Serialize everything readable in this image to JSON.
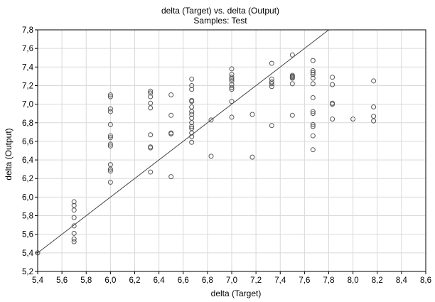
{
  "chart_data": {
    "type": "scatter",
    "title": "delta (Target) vs. delta (Output)",
    "subtitle": "Samples: Test",
    "xlabel": "delta (Target)",
    "ylabel": "delta (Output)",
    "xlim": [
      5.4,
      8.6
    ],
    "ylim": [
      5.2,
      7.8
    ],
    "xticks": [
      "5,4",
      "5,6",
      "5,8",
      "6,0",
      "6,2",
      "6,4",
      "6,6",
      "6,8",
      "7,0",
      "7,2",
      "7,4",
      "7,6",
      "7,8",
      "8,0",
      "8,2",
      "8,4",
      "8,6"
    ],
    "yticks": [
      "5,2",
      "5,4",
      "5,6",
      "5,8",
      "6,0",
      "6,2",
      "6,4",
      "6,6",
      "6,8",
      "7,0",
      "7,2",
      "7,4",
      "7,6",
      "7,8"
    ],
    "grid": true,
    "reference_line": {
      "type": "identity",
      "from": [
        5.4,
        5.4
      ],
      "to": [
        7.8,
        7.8
      ]
    },
    "points": [
      [
        5.4,
        5.4
      ],
      [
        5.7,
        5.95
      ],
      [
        5.7,
        5.91
      ],
      [
        5.7,
        5.86
      ],
      [
        5.7,
        5.78
      ],
      [
        5.7,
        5.69
      ],
      [
        5.7,
        5.61
      ],
      [
        5.7,
        5.55
      ],
      [
        5.7,
        5.52
      ],
      [
        6.0,
        7.1
      ],
      [
        6.0,
        7.08
      ],
      [
        6.0,
        6.95
      ],
      [
        6.0,
        6.92
      ],
      [
        6.0,
        6.78
      ],
      [
        6.0,
        6.66
      ],
      [
        6.0,
        6.64
      ],
      [
        6.0,
        6.57
      ],
      [
        6.0,
        6.55
      ],
      [
        6.0,
        6.35
      ],
      [
        6.0,
        6.3
      ],
      [
        6.0,
        6.28
      ],
      [
        6.0,
        6.16
      ],
      [
        6.33,
        7.14
      ],
      [
        6.33,
        7.12
      ],
      [
        6.33,
        7.08
      ],
      [
        6.33,
        7.01
      ],
      [
        6.33,
        6.96
      ],
      [
        6.33,
        6.67
      ],
      [
        6.33,
        6.54
      ],
      [
        6.33,
        6.53
      ],
      [
        6.33,
        6.27
      ],
      [
        6.5,
        7.1
      ],
      [
        6.5,
        6.88
      ],
      [
        6.5,
        6.69
      ],
      [
        6.5,
        6.68
      ],
      [
        6.5,
        6.22
      ],
      [
        6.67,
        7.27
      ],
      [
        6.67,
        7.2
      ],
      [
        6.67,
        7.16
      ],
      [
        6.67,
        7.04
      ],
      [
        6.67,
        7.03
      ],
      [
        6.67,
        6.97
      ],
      [
        6.67,
        6.92
      ],
      [
        6.67,
        6.89
      ],
      [
        6.67,
        6.85
      ],
      [
        6.67,
        6.8
      ],
      [
        6.67,
        6.76
      ],
      [
        6.67,
        6.74
      ],
      [
        6.67,
        6.69
      ],
      [
        6.67,
        6.65
      ],
      [
        6.67,
        6.59
      ],
      [
        6.83,
        6.83
      ],
      [
        6.83,
        6.44
      ],
      [
        7.0,
        7.38
      ],
      [
        7.0,
        7.32
      ],
      [
        7.0,
        7.29
      ],
      [
        7.0,
        7.27
      ],
      [
        7.0,
        7.25
      ],
      [
        7.0,
        7.21
      ],
      [
        7.0,
        7.18
      ],
      [
        7.0,
        7.16
      ],
      [
        7.0,
        7.03
      ],
      [
        7.0,
        6.86
      ],
      [
        7.17,
        6.89
      ],
      [
        7.17,
        6.43
      ],
      [
        7.33,
        7.44
      ],
      [
        7.33,
        7.27
      ],
      [
        7.33,
        7.24
      ],
      [
        7.33,
        7.22
      ],
      [
        7.33,
        7.19
      ],
      [
        7.33,
        6.77
      ],
      [
        7.5,
        7.53
      ],
      [
        7.5,
        7.31
      ],
      [
        7.5,
        7.3
      ],
      [
        7.5,
        7.29
      ],
      [
        7.5,
        7.28
      ],
      [
        7.5,
        7.22
      ],
      [
        7.5,
        6.88
      ],
      [
        7.67,
        7.47
      ],
      [
        7.67,
        7.36
      ],
      [
        7.67,
        7.34
      ],
      [
        7.67,
        7.32
      ],
      [
        7.67,
        7.28
      ],
      [
        7.67,
        7.22
      ],
      [
        7.67,
        7.07
      ],
      [
        7.67,
        6.92
      ],
      [
        7.67,
        6.9
      ],
      [
        7.67,
        6.78
      ],
      [
        7.67,
        6.76
      ],
      [
        7.67,
        6.66
      ],
      [
        7.67,
        6.51
      ],
      [
        7.83,
        7.29
      ],
      [
        7.83,
        7.21
      ],
      [
        7.83,
        7.01
      ],
      [
        7.83,
        7.0
      ],
      [
        7.83,
        6.84
      ],
      [
        8.0,
        6.84
      ],
      [
        8.17,
        7.25
      ],
      [
        8.17,
        6.97
      ],
      [
        8.17,
        6.87
      ],
      [
        8.17,
        6.82
      ]
    ]
  }
}
